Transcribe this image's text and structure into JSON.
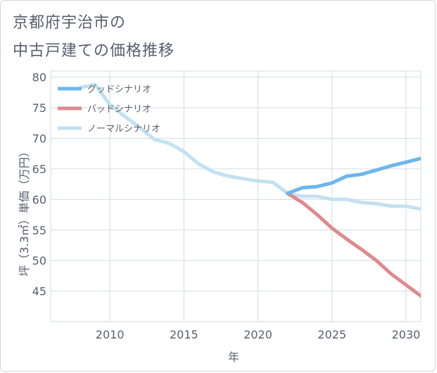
{
  "title_line1": "京都府宇治市の",
  "title_line2": "中古戸建ての価格推移",
  "chart_data": {
    "type": "line",
    "xlabel": "年",
    "ylabel": "坪（3.3㎡）単価（万円）",
    "xlim": [
      2006,
      2031
    ],
    "ylim": [
      40,
      81
    ],
    "x_ticks": [
      2010,
      2015,
      2020,
      2025,
      2030
    ],
    "y_ticks": [
      45,
      50,
      55,
      60,
      65,
      70,
      75,
      80
    ],
    "grid": true,
    "legend_position": "top-left",
    "series": [
      {
        "name": "グッドシナリオ",
        "color": "#6cb6ee",
        "x": [
          2022,
          2023,
          2024,
          2025,
          2026,
          2027,
          2028,
          2029,
          2030,
          2031
        ],
        "y": [
          61.0,
          61.9,
          62.1,
          62.7,
          63.8,
          64.1,
          64.8,
          65.5,
          66.1,
          66.7
        ]
      },
      {
        "name": "バッドシナリオ",
        "color": "#de8a8f",
        "x": [
          2022,
          2023,
          2024,
          2025,
          2026,
          2027,
          2028,
          2029,
          2030,
          2031
        ],
        "y": [
          61.0,
          59.5,
          57.5,
          55.3,
          53.5,
          51.8,
          50.0,
          47.8,
          46.0,
          44.2
        ]
      },
      {
        "name": "ノーマルシナリオ",
        "color": "#c2e1f1",
        "x": [
          2008,
          2009,
          2010,
          2011,
          2012,
          2013,
          2014,
          2015,
          2016,
          2017,
          2018,
          2019,
          2020,
          2021,
          2022,
          2023,
          2024,
          2025,
          2026,
          2027,
          2028,
          2029,
          2030,
          2031
        ],
        "y": [
          78.3,
          78.8,
          75.5,
          73.6,
          71.8,
          69.8,
          69.2,
          67.8,
          65.8,
          64.5,
          63.8,
          63.4,
          63.0,
          62.8,
          61.0,
          60.5,
          60.5,
          60.0,
          60.0,
          59.5,
          59.3,
          58.9,
          58.9,
          58.4
        ]
      }
    ]
  }
}
